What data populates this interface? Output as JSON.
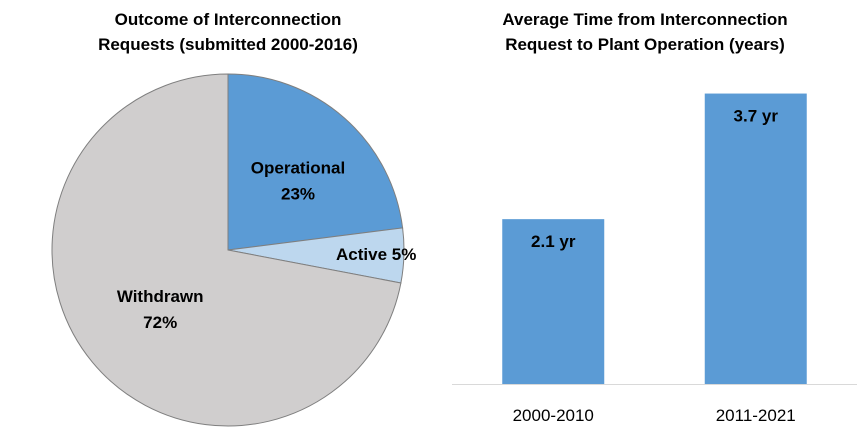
{
  "chart_data": [
    {
      "type": "pie",
      "title_lines": [
        "Outcome of Interconnection",
        "Requests (submitted 2000-2016)"
      ],
      "slices": [
        {
          "label": "Operational",
          "value_label": "23%",
          "value": 23,
          "color": "#5b9bd5"
        },
        {
          "label": "Active",
          "value_label": "5%",
          "value": 5,
          "color": "#bdd7ee"
        },
        {
          "label": "Withdrawn",
          "value_label": "72%",
          "value": 72,
          "color": "#d0cece"
        }
      ]
    },
    {
      "type": "bar",
      "title_lines": [
        "Average Time from Interconnection",
        "Request to Plant Operation (years)"
      ],
      "categories": [
        "2000-2010",
        "2011-2021"
      ],
      "values": [
        2.1,
        3.7
      ],
      "data_labels": [
        "2.1 yr",
        "3.7 yr"
      ],
      "color": "#5b9bd5",
      "ylim": [
        0,
        4.0
      ]
    }
  ]
}
